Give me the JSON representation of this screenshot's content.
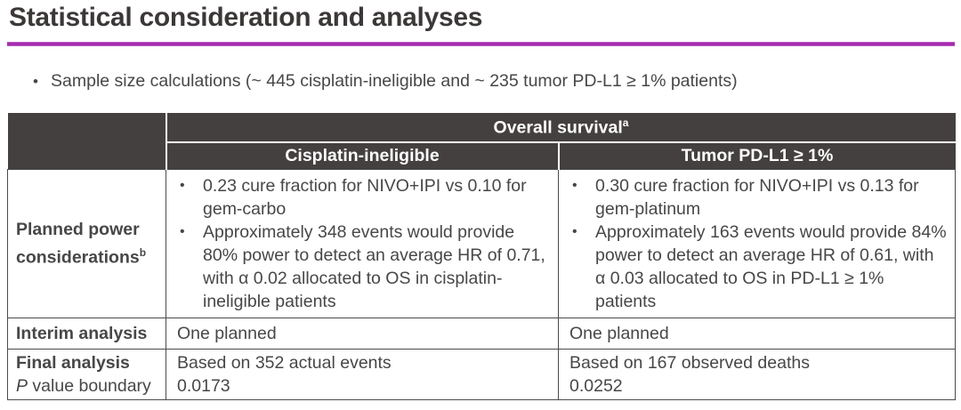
{
  "slide": {
    "title": "Statistical consideration and analyses",
    "bullet_marker": "•",
    "intro_bullet": "Sample size calculations (~ 445 cisplatin-ineligible and ~ 235 tumor PD-L1 ≥ 1% patients)"
  },
  "colors": {
    "accent_rule": "#A427AE",
    "header_bg": "#454040",
    "header_text": "#FFFFFF",
    "body_text": "#474747",
    "table_border": "#4A4A4A"
  },
  "table": {
    "header": {
      "group_label": "Overall survival",
      "group_sup": "a",
      "col_cisplatin": "Cisplatin-ineligible",
      "col_pdl1": "Tumor PD-L1 ≥ 1%"
    },
    "rows": {
      "power": {
        "label": "Planned power considerations",
        "label_sup": "b",
        "cisplatin_bullets": [
          "0.23 cure fraction for NIVO+IPI vs 0.10 for gem-carbo",
          "Approximately 348 events would provide 80% power to detect an average HR of 0.71, with α 0.02 allocated to OS in cisplatin-ineligible patients"
        ],
        "pdl1_bullets": [
          "0.30 cure fraction for NIVO+IPI vs 0.13 for gem-platinum",
          "Approximately 163 events would provide 84% power to detect an average HR of 0.61, with α 0.03 allocated to OS in PD-L1 ≥ 1% patients"
        ]
      },
      "interim": {
        "label": "Interim analysis",
        "cisplatin": "One planned",
        "pdl1": "One planned"
      },
      "final": {
        "label_line1": "Final analysis",
        "label_line2_italic": "P",
        "label_line2_rest": " value boundary",
        "cisplatin_line1": "Based on 352 actual events",
        "cisplatin_value": "0.0173",
        "pdl1_line1": "Based on 167 observed deaths",
        "pdl1_value": "0.0252"
      }
    }
  }
}
